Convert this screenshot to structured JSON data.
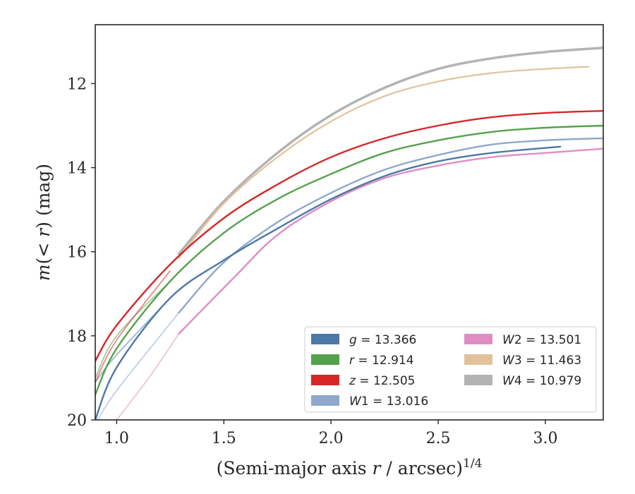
{
  "chart_data": {
    "type": "line",
    "xlabel": "(Semi-major axis r / arcsec)",
    "xlabel_parts": {
      "pre": "(Semi-major axis ",
      "var": "r",
      "post": " / arcsec)",
      "sup": "1/4"
    },
    "ylabel": "m(< r) (mag)",
    "ylabel_parts": {
      "m": "m",
      "open": "(",
      "lt": "< ",
      "r": "r",
      "close": ") (mag)"
    },
    "xlim": [
      0.9,
      3.27
    ],
    "ylim": [
      20.0,
      10.6
    ],
    "y_inverted": true,
    "xticks": [
      1.0,
      1.5,
      2.0,
      2.5,
      3.0
    ],
    "xtick_labels": [
      "1.0",
      "1.5",
      "2.0",
      "2.5",
      "3.0"
    ],
    "yticks": [
      12,
      14,
      16,
      18,
      20
    ],
    "ytick_labels": [
      "12",
      "14",
      "16",
      "18",
      "20"
    ],
    "grid": false,
    "legend_placement": "lower-right",
    "legend_columns": 2,
    "series": [
      {
        "name": "g = 13.366",
        "var": "g",
        "num": "",
        "value": "13.366",
        "color": "#4c78a8",
        "points": [
          [
            0.9,
            20.0
          ],
          [
            1.0,
            18.75
          ],
          [
            1.25,
            17.1
          ],
          [
            1.5,
            16.2
          ],
          [
            1.75,
            15.45
          ],
          [
            2.0,
            14.75
          ],
          [
            2.25,
            14.2
          ],
          [
            2.5,
            13.85
          ],
          [
            2.75,
            13.65
          ],
          [
            3.07,
            13.5
          ]
        ],
        "band": [
          [
            0.9,
            19.1
          ],
          [
            1.0,
            18.45
          ],
          [
            1.25,
            17.1
          ]
        ]
      },
      {
        "name": "r = 12.914",
        "var": "r",
        "num": "",
        "value": "12.914",
        "color": "#54a24b",
        "points": [
          [
            0.9,
            19.4
          ],
          [
            1.0,
            18.3
          ],
          [
            1.25,
            16.7
          ],
          [
            1.5,
            15.55
          ],
          [
            1.75,
            14.75
          ],
          [
            2.0,
            14.15
          ],
          [
            2.25,
            13.65
          ],
          [
            2.5,
            13.35
          ],
          [
            2.75,
            13.15
          ],
          [
            3.0,
            13.05
          ],
          [
            3.27,
            13.0
          ]
        ],
        "band": [
          [
            0.9,
            19.0
          ],
          [
            1.0,
            18.0
          ],
          [
            1.25,
            16.7
          ]
        ]
      },
      {
        "name": "z = 12.505",
        "var": "z",
        "num": "",
        "value": "12.505",
        "color": "#d62728",
        "points": [
          [
            0.9,
            18.6
          ],
          [
            1.0,
            17.75
          ],
          [
            1.25,
            16.3
          ],
          [
            1.5,
            15.2
          ],
          [
            1.75,
            14.4
          ],
          [
            2.0,
            13.75
          ],
          [
            2.25,
            13.3
          ],
          [
            2.5,
            13.0
          ],
          [
            2.75,
            12.8
          ],
          [
            3.0,
            12.7
          ],
          [
            3.27,
            12.65
          ]
        ],
        "band": [
          [
            0.9,
            19.1
          ],
          [
            1.0,
            18.1
          ],
          [
            1.25,
            16.45
          ]
        ]
      },
      {
        "name": "W1 = 13.016",
        "var": "W",
        "num": "1",
        "value": "13.016",
        "color": "#8fa8cc",
        "points": [
          [
            1.29,
            17.45
          ],
          [
            1.5,
            16.25
          ],
          [
            1.75,
            15.3
          ],
          [
            2.0,
            14.6
          ],
          [
            2.25,
            14.05
          ],
          [
            2.5,
            13.7
          ],
          [
            2.75,
            13.45
          ],
          [
            3.0,
            13.35
          ],
          [
            3.27,
            13.3
          ]
        ],
        "band": [
          [
            0.9,
            20.1
          ],
          [
            1.0,
            19.3
          ],
          [
            1.29,
            17.45
          ]
        ]
      },
      {
        "name": "W2 = 13.501",
        "var": "W",
        "num": "2",
        "value": "13.501",
        "color": "#e08dc3",
        "points": [
          [
            1.29,
            17.95
          ],
          [
            1.55,
            16.6
          ],
          [
            1.75,
            15.6
          ],
          [
            2.0,
            14.8
          ],
          [
            2.25,
            14.25
          ],
          [
            2.5,
            13.95
          ],
          [
            2.75,
            13.75
          ],
          [
            3.0,
            13.65
          ],
          [
            3.27,
            13.55
          ]
        ],
        "band": [
          [
            1.0,
            20.0
          ],
          [
            1.15,
            19.0
          ],
          [
            1.29,
            17.95
          ]
        ]
      },
      {
        "name": "W3 = 11.463",
        "var": "W",
        "num": "3",
        "value": "11.463",
        "color": "#e2c29c",
        "points": [
          [
            1.29,
            16.15
          ],
          [
            1.5,
            14.85
          ],
          [
            1.75,
            13.75
          ],
          [
            2.0,
            12.9
          ],
          [
            2.25,
            12.3
          ],
          [
            2.5,
            11.95
          ],
          [
            2.75,
            11.75
          ],
          [
            3.0,
            11.65
          ],
          [
            3.2,
            11.6
          ]
        ],
        "band": []
      },
      {
        "name": "W4 = 10.979",
        "var": "W",
        "num": "4",
        "value": "10.979",
        "color": "#b3b3b3",
        "points": [
          [
            1.29,
            16.05
          ],
          [
            1.5,
            14.8
          ],
          [
            1.75,
            13.65
          ],
          [
            2.0,
            12.75
          ],
          [
            2.25,
            12.1
          ],
          [
            2.5,
            11.65
          ],
          [
            2.75,
            11.4
          ],
          [
            3.0,
            11.25
          ],
          [
            3.27,
            11.15
          ]
        ],
        "band": []
      }
    ]
  }
}
